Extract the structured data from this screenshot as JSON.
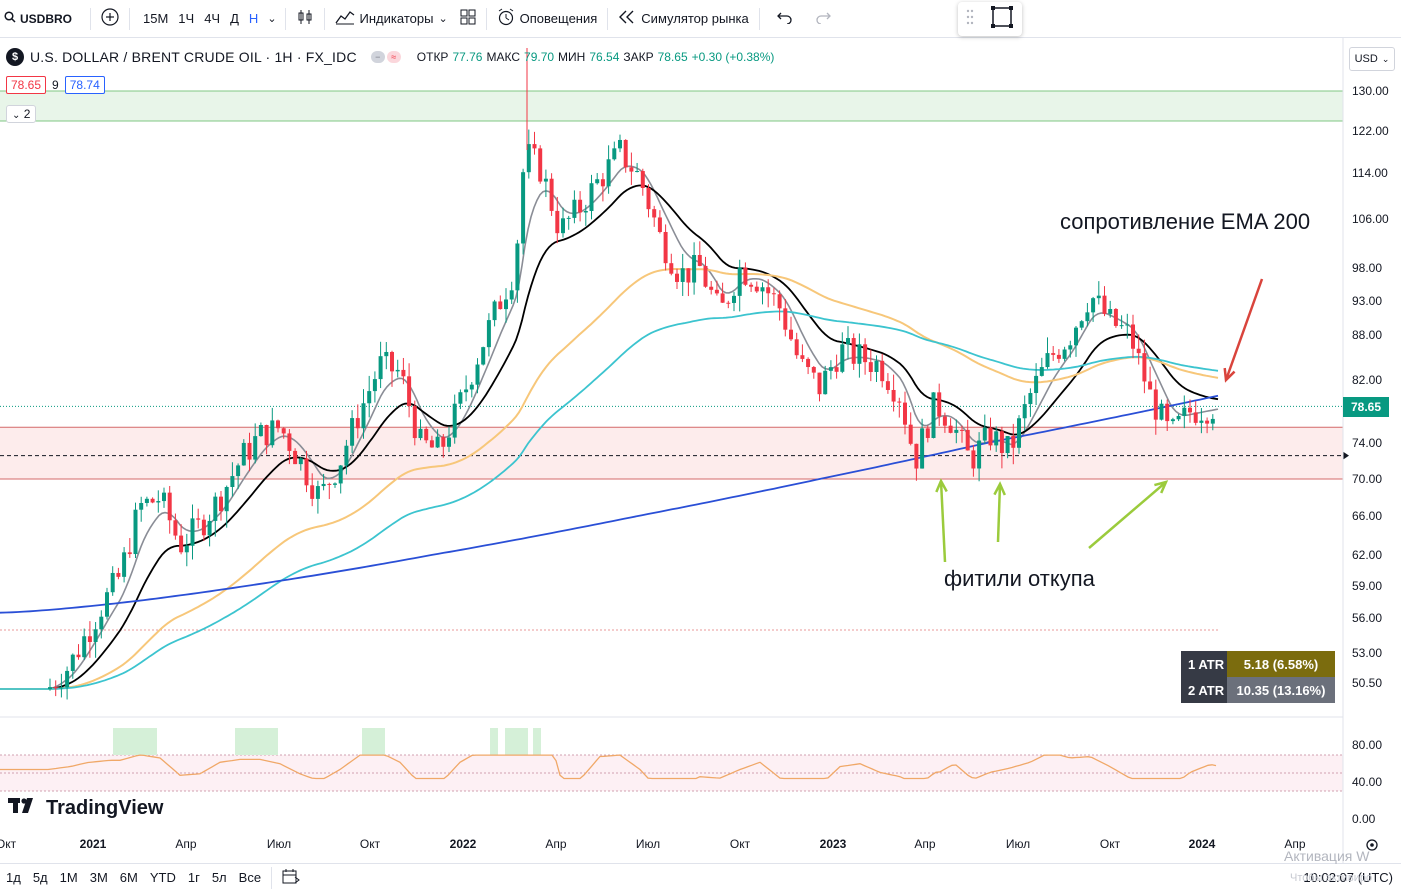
{
  "toolbar": {
    "symbol": "USDBRO",
    "intervals": [
      "15M",
      "1Ч",
      "4Ч",
      "Д",
      "Н"
    ],
    "active_interval": "Н",
    "indicators_label": "Индикаторы",
    "alerts_label": "Оповещения",
    "replay_label": "Симулятор рынка",
    "icons": [
      "search-icon",
      "add-icon",
      "chevron-down-icon",
      "bar-style-icon",
      "indicators-icon",
      "layouts-icon",
      "alert-icon",
      "replay-icon",
      "undo-icon",
      "redo-icon",
      "drag-handle-icon",
      "fullscreen-icon"
    ]
  },
  "legend": {
    "name": "U.S. DOLLAR / BRENT CRUDE OIL · 1H · FX_IDC",
    "open_label": "ОТКР",
    "open": "77.76",
    "high_label": "МАКС",
    "high": "79.70",
    "low_label": "МИН",
    "low": "76.54",
    "close_label": "ЗАКР",
    "close": "78.65",
    "change": "+0.30 (+0.38%)",
    "bid": "78.65",
    "spread": "9",
    "ask": "78.74",
    "collapsed_count": "2"
  },
  "currency": "USD",
  "current_price": "78.65",
  "price_axis": [
    "130.00",
    "122.00",
    "114.00",
    "106.00",
    "98.00",
    "93.00",
    "88.00",
    "82.00",
    "74.00",
    "70.00",
    "66.00",
    "62.00",
    "59.00",
    "56.00",
    "53.00",
    "50.50"
  ],
  "osc_axis": [
    "80.00",
    "40.00",
    "0.00"
  ],
  "time_axis": [
    "Окт",
    "2021",
    "Апр",
    "Июл",
    "Окт",
    "2022",
    "Апр",
    "Июл",
    "Окт",
    "2023",
    "Апр",
    "Июл",
    "Окт",
    "2024",
    "Апр"
  ],
  "atr": [
    {
      "label": "1 ATR",
      "value": "5.18 (6.58%)"
    },
    {
      "label": "2 ATR",
      "value": "10.35 (13.16%)"
    }
  ],
  "annotations": {
    "resistance": "сопротивление EMA 200",
    "wicks": "фитили откупа"
  },
  "brand": "TradingView",
  "bottom": {
    "ranges": [
      "1д",
      "5д",
      "1М",
      "3М",
      "6М",
      "YTD",
      "1г",
      "5л",
      "Все"
    ],
    "clock": "10:02:07 (UTC)",
    "watermark": "Активация W",
    "watermark2": "Чтобы активиро"
  },
  "colors": {
    "up": "#089981",
    "down": "#f23645",
    "ema_black": "#000000",
    "ema_grey": "#8a8d96",
    "ema_orange": "#f7c77a",
    "ema_cyan": "#3cc4cf",
    "ema_blue": "#2a4fd6",
    "annotation_green": "#9bcb3c",
    "annotation_red": "#d9443c"
  },
  "chart_data": {
    "type": "candlestick",
    "zones": [
      {
        "name": "upper-zone",
        "from": 124.0,
        "to": 130.0
      },
      {
        "name": "support-zone",
        "from": 70.0,
        "to": 76.0
      }
    ],
    "dashed_level": 72.6
  }
}
